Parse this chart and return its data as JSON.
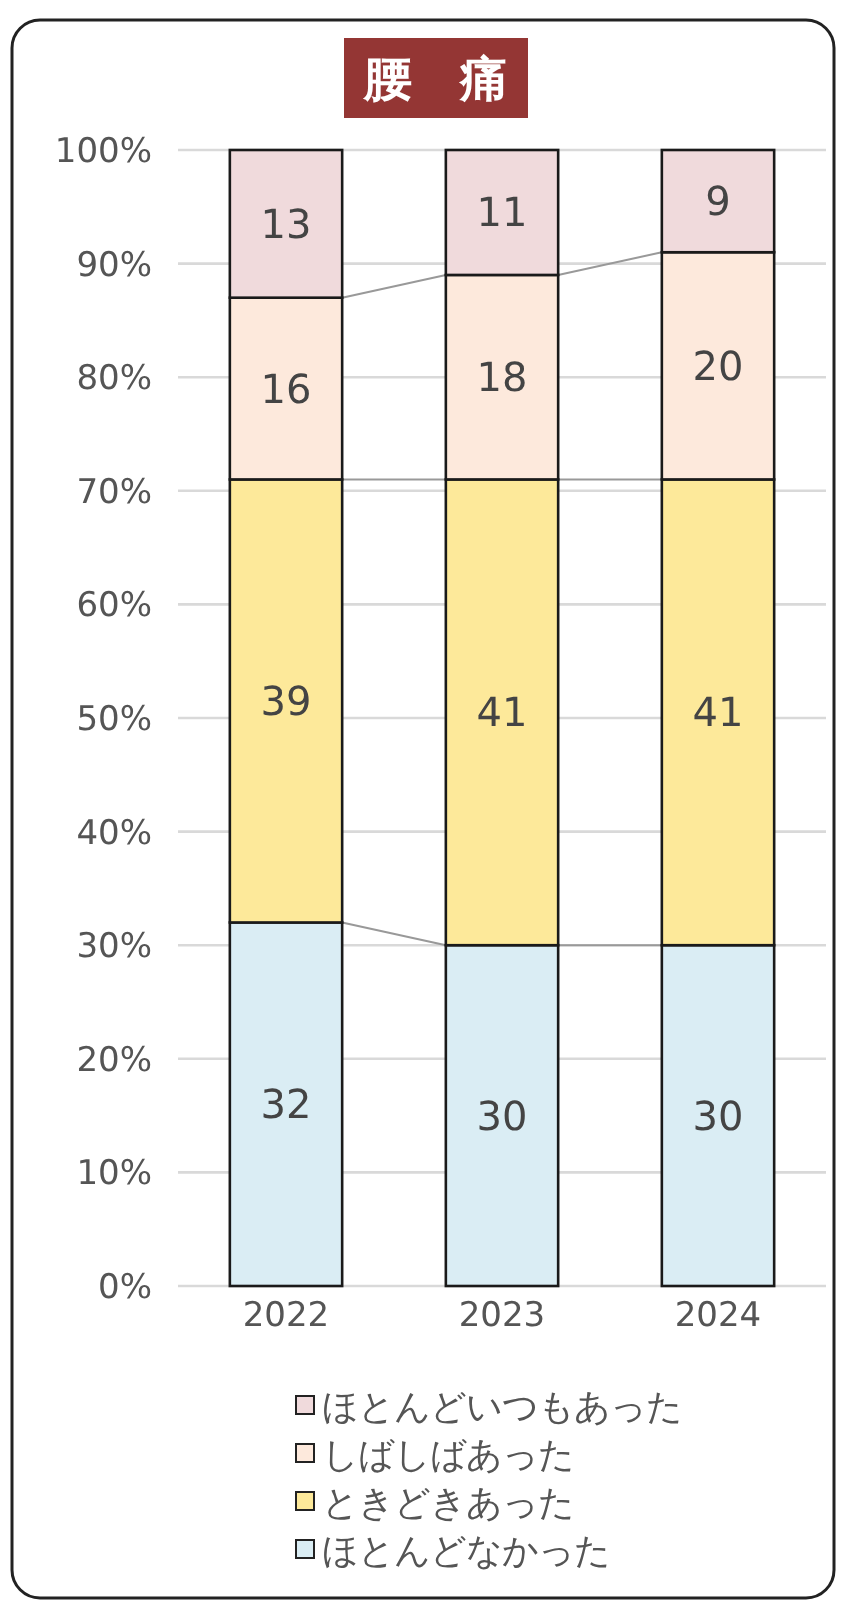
{
  "chart_data": {
    "type": "bar",
    "title": "腰　痛",
    "stacked": true,
    "categories": [
      "2022",
      "2023",
      "2024"
    ],
    "series": [
      {
        "name": "ほとんどなかった",
        "color": "#daedf4",
        "values": [
          32,
          30,
          30
        ]
      },
      {
        "name": "ときどきあった",
        "color": "#fde99a",
        "values": [
          39,
          41,
          41
        ]
      },
      {
        "name": "しばしばあった",
        "color": "#fde9dc",
        "values": [
          16,
          18,
          20
        ]
      },
      {
        "name": "ほとんどいつもあった",
        "color": "#f0dadc",
        "values": [
          13,
          11,
          9
        ]
      }
    ],
    "ylim": [
      0,
      100
    ],
    "yticks": [
      {
        "value": 0,
        "label": "0%"
      },
      {
        "value": 10,
        "label": "10%"
      },
      {
        "value": 20,
        "label": "20%"
      },
      {
        "value": 30,
        "label": "30%"
      },
      {
        "value": 40,
        "label": "40%"
      },
      {
        "value": 50,
        "label": "50%"
      },
      {
        "value": 60,
        "label": "60%"
      },
      {
        "value": 70,
        "label": "70%"
      },
      {
        "value": 80,
        "label": "80%"
      },
      {
        "value": 90,
        "label": "90%"
      },
      {
        "value": 100,
        "label": "100%"
      }
    ],
    "grid": "y",
    "data_labels": true,
    "legend": "bottom"
  }
}
